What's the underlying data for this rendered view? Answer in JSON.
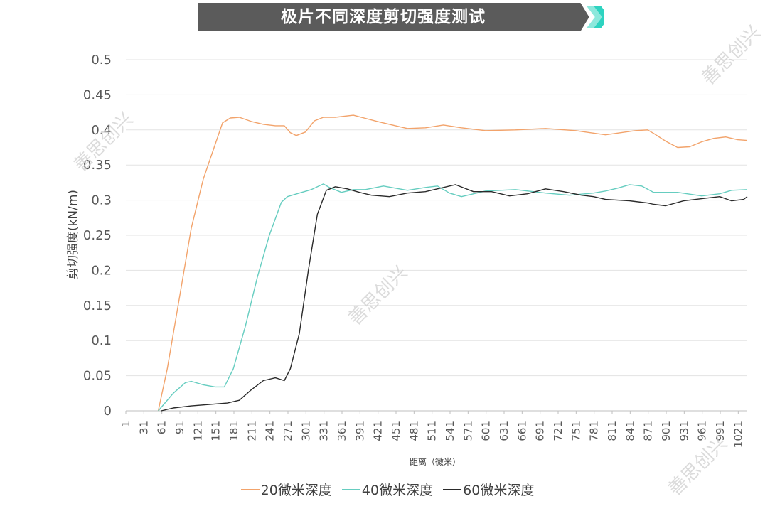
{
  "banner": {
    "title": "极片不同深度剪切强度测试",
    "colors": {
      "banner": "#5b5b5b",
      "arrow": "#2ed3c0"
    }
  },
  "watermark": {
    "text": "善思创兴"
  },
  "chart_data": {
    "type": "line",
    "title": "极片不同深度剪切强度测试",
    "xlabel": "距离（微米）",
    "ylabel": "剪切强度(kN/m)",
    "ylim": [
      0,
      0.5
    ],
    "xlim": [
      1,
      1036
    ],
    "y_ticks": [
      "0",
      "0.05",
      "0.1",
      "0.15",
      "0.2",
      "0.25",
      "0.3",
      "0.35",
      "0.4",
      "0.45",
      "0.5"
    ],
    "x_ticks": [
      "1",
      "31",
      "61",
      "91",
      "121",
      "151",
      "181",
      "211",
      "241",
      "271",
      "301",
      "331",
      "361",
      "391",
      "421",
      "451",
      "481",
      "511",
      "541",
      "571",
      "601",
      "631",
      "661",
      "691",
      "721",
      "751",
      "781",
      "811",
      "841",
      "871",
      "901",
      "931",
      "961",
      "991",
      "1021"
    ],
    "grid": "horizontal",
    "legend_position": "bottom",
    "series": [
      {
        "name": "20微米深度",
        "color": "#f2a36b",
        "x": [
          55,
          70,
          90,
          110,
          130,
          150,
          162,
          175,
          190,
          210,
          230,
          250,
          265,
          275,
          285,
          300,
          315,
          330,
          350,
          380,
          420,
          450,
          470,
          500,
          530,
          560,
          600,
          650,
          700,
          750,
          800,
          850,
          870,
          880,
          900,
          920,
          940,
          960,
          980,
          1000,
          1020,
          1036
        ],
        "values": [
          0,
          0.06,
          0.16,
          0.26,
          0.33,
          0.38,
          0.41,
          0.417,
          0.418,
          0.412,
          0.408,
          0.406,
          0.406,
          0.396,
          0.392,
          0.397,
          0.413,
          0.418,
          0.418,
          0.421,
          0.412,
          0.406,
          0.402,
          0.403,
          0.407,
          0.403,
          0.399,
          0.4,
          0.402,
          0.399,
          0.393,
          0.399,
          0.4,
          0.395,
          0.384,
          0.375,
          0.376,
          0.383,
          0.388,
          0.39,
          0.386,
          0.385
        ]
      },
      {
        "name": "40微米深度",
        "color": "#66cdc0",
        "x": [
          55,
          80,
          100,
          110,
          130,
          150,
          165,
          180,
          200,
          220,
          240,
          260,
          270,
          290,
          310,
          330,
          340,
          360,
          380,
          400,
          430,
          470,
          500,
          520,
          540,
          560,
          600,
          650,
          700,
          740,
          780,
          800,
          820,
          840,
          860,
          880,
          920,
          960,
          990,
          1010,
          1036
        ],
        "values": [
          0,
          0.025,
          0.04,
          0.042,
          0.037,
          0.034,
          0.034,
          0.06,
          0.12,
          0.19,
          0.25,
          0.297,
          0.305,
          0.31,
          0.315,
          0.323,
          0.318,
          0.311,
          0.315,
          0.315,
          0.32,
          0.314,
          0.318,
          0.32,
          0.31,
          0.305,
          0.313,
          0.315,
          0.31,
          0.307,
          0.31,
          0.313,
          0.317,
          0.322,
          0.32,
          0.311,
          0.311,
          0.306,
          0.309,
          0.314,
          0.315
        ]
      },
      {
        "name": "60微米深度",
        "color": "#2a2a2a",
        "x": [
          60,
          80,
          110,
          140,
          170,
          190,
          210,
          230,
          250,
          265,
          275,
          290,
          305,
          320,
          335,
          350,
          370,
          390,
          410,
          440,
          470,
          500,
          530,
          550,
          580,
          610,
          640,
          670,
          700,
          730,
          760,
          780,
          800,
          840,
          870,
          880,
          900,
          930,
          960,
          990,
          1010,
          1030,
          1036
        ],
        "values": [
          0,
          0.004,
          0.007,
          0.009,
          0.011,
          0.015,
          0.03,
          0.043,
          0.047,
          0.043,
          0.06,
          0.11,
          0.2,
          0.28,
          0.314,
          0.319,
          0.316,
          0.311,
          0.307,
          0.305,
          0.31,
          0.312,
          0.318,
          0.322,
          0.312,
          0.312,
          0.306,
          0.309,
          0.316,
          0.312,
          0.307,
          0.305,
          0.301,
          0.299,
          0.296,
          0.294,
          0.292,
          0.299,
          0.302,
          0.305,
          0.299,
          0.301,
          0.305
        ]
      }
    ]
  }
}
